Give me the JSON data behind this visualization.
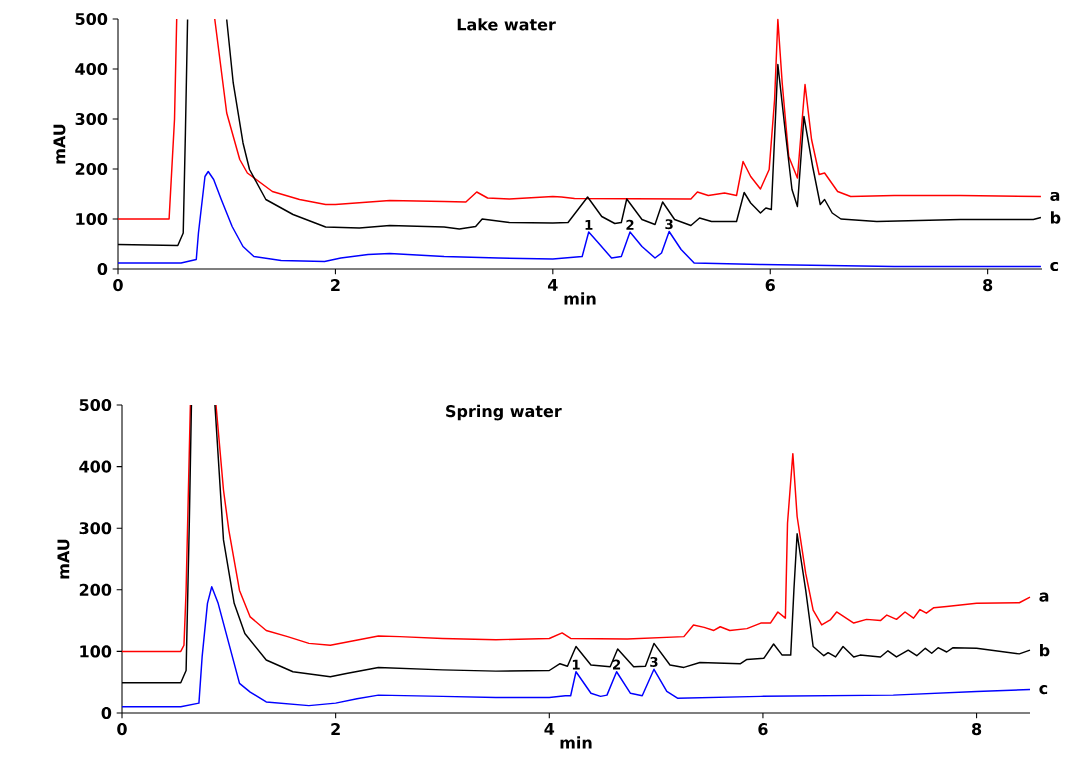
{
  "chart_data": [
    {
      "type": "line",
      "title": "Lake water",
      "xlabel": "min",
      "ylabel": "mAU",
      "xlim": [
        0,
        8.5
      ],
      "ylim": [
        0,
        500
      ],
      "xticks": [
        0,
        2,
        4,
        6,
        8
      ],
      "yticks": [
        0,
        100,
        200,
        300,
        400,
        500
      ],
      "series": [
        {
          "name": "a",
          "color": "#ff0000",
          "x": [
            0,
            0.47,
            0.52,
            0.54,
            0.7,
            0.89,
            1.0,
            1.12,
            1.19,
            1.42,
            1.67,
            1.91,
            2.0,
            2.5,
            3.0,
            3.2,
            3.3,
            3.4,
            3.6,
            4.0,
            4.08,
            4.2,
            5.27,
            5.33,
            5.43,
            5.58,
            5.69,
            5.75,
            5.82,
            5.91,
            5.99,
            6.04,
            6.07,
            6.11,
            6.17,
            6.25,
            6.32,
            6.38,
            6.45,
            6.5,
            6.62,
            6.74,
            7.14,
            7.75,
            8.49
          ],
          "values": [
            100,
            100,
            300,
            500,
            null,
            500,
            312,
            219,
            192,
            155,
            139,
            129,
            129,
            137,
            135,
            134,
            154,
            142,
            140,
            145,
            144,
            141,
            140,
            154,
            147,
            152,
            147,
            215,
            185,
            160,
            199,
            339,
            499,
            372,
            225,
            182,
            369,
            259,
            189,
            192,
            155,
            145,
            147,
            147,
            145
          ]
        },
        {
          "name": "b",
          "color": "#000000",
          "x": [
            0,
            0.55,
            0.6,
            0.62,
            0.64,
            0.8,
            1.0,
            1.06,
            1.15,
            1.21,
            1.36,
            1.61,
            1.91,
            2.22,
            2.5,
            3.0,
            3.14,
            3.29,
            3.35,
            3.6,
            4.0,
            4.14,
            4.32,
            4.45,
            4.57,
            4.63,
            4.68,
            4.82,
            4.94,
            5.01,
            5.12,
            5.27,
            5.35,
            5.46,
            5.69,
            5.76,
            5.82,
            5.91,
            5.96,
            6.01,
            6.07,
            6.14,
            6.2,
            6.25,
            6.31,
            6.39,
            6.46,
            6.5,
            6.57,
            6.65,
            6.98,
            7.75,
            8.42,
            8.49
          ],
          "values": [
            49,
            47,
            72,
            272,
            499,
            null,
            499,
            372,
            252,
            199,
            139,
            109,
            84,
            82,
            87,
            84,
            80,
            85,
            100,
            93,
            92,
            93,
            144,
            105,
            91,
            93,
            140,
            99,
            89,
            134,
            99,
            87,
            102,
            95,
            95,
            153,
            132,
            112,
            122,
            119,
            409,
            272,
            159,
            125,
            305,
            205,
            129,
            139,
            112,
            100,
            95,
            99,
            99,
            103
          ]
        },
        {
          "name": "c",
          "color": "#0000ff",
          "x": [
            0,
            0.58,
            0.72,
            0.74,
            0.8,
            0.83,
            0.88,
            0.95,
            1.05,
            1.15,
            1.25,
            1.5,
            1.9,
            2.05,
            2.3,
            2.5,
            3.0,
            3.5,
            4.0,
            4.27,
            4.33,
            4.42,
            4.54,
            4.63,
            4.71,
            4.82,
            4.94,
            5.0,
            5.07,
            5.18,
            5.3,
            5.91,
            7.14,
            8.49
          ],
          "values": [
            12,
            12,
            19,
            72,
            185,
            195,
            179,
            139,
            85,
            45,
            25,
            17,
            15,
            22,
            29,
            31,
            25,
            22,
            20,
            25,
            74,
            52,
            22,
            25,
            74,
            45,
            22,
            32,
            75,
            39,
            12,
            9,
            5,
            5
          ]
        }
      ],
      "annotations": [
        {
          "text": "1",
          "x": 4.33,
          "y": 74
        },
        {
          "text": "2",
          "x": 4.71,
          "y": 74
        },
        {
          "text": "3",
          "x": 5.07,
          "y": 75
        }
      ]
    },
    {
      "type": "line",
      "title": "Spring water",
      "xlabel": "min",
      "ylabel": "mAU",
      "xlim": [
        0,
        8.5
      ],
      "ylim": [
        0,
        500
      ],
      "xticks": [
        0,
        2,
        4,
        6,
        8
      ],
      "yticks": [
        0,
        100,
        200,
        300,
        400,
        500
      ],
      "series": [
        {
          "name": "a",
          "color": "#ff0000",
          "x": [
            0,
            0.55,
            0.58,
            0.6,
            0.64,
            0.8,
            0.88,
            0.95,
            1.0,
            1.1,
            1.2,
            1.35,
            1.55,
            1.75,
            1.95,
            2.1,
            2.4,
            2.6,
            3.0,
            3.5,
            4.0,
            4.12,
            4.2,
            4.73,
            5.26,
            5.35,
            5.45,
            5.54,
            5.6,
            5.69,
            5.85,
            5.98,
            6.07,
            6.14,
            6.21,
            6.23,
            6.28,
            6.32,
            6.4,
            6.47,
            6.55,
            6.63,
            6.69,
            6.85,
            6.97,
            7.1,
            7.16,
            7.25,
            7.33,
            7.41,
            7.47,
            7.53,
            7.6,
            7.72,
            8.0,
            8.4,
            8.5
          ],
          "values": [
            100,
            100,
            110,
            199,
            500,
            null,
            500,
            362,
            297,
            199,
            156,
            134,
            124,
            113,
            110,
            115,
            125,
            124,
            121,
            119,
            121,
            130,
            121,
            120,
            124,
            143,
            139,
            134,
            140,
            134,
            137,
            146,
            146,
            164,
            154,
            308,
            421,
            319,
            227,
            167,
            143,
            151,
            164,
            146,
            152,
            150,
            159,
            152,
            164,
            154,
            168,
            162,
            171,
            173,
            178,
            179,
            188
          ]
        },
        {
          "name": "b",
          "color": "#000000",
          "x": [
            0,
            0.55,
            0.6,
            0.63,
            0.65,
            0.8,
            0.87,
            0.95,
            1.05,
            1.15,
            1.35,
            1.6,
            1.95,
            2.1,
            2.4,
            3.0,
            3.5,
            4.0,
            4.1,
            4.17,
            4.25,
            4.39,
            4.57,
            4.64,
            4.79,
            4.9,
            4.98,
            5.13,
            5.26,
            5.41,
            5.79,
            5.85,
            6.01,
            6.1,
            6.18,
            6.26,
            6.29,
            6.32,
            6.4,
            6.47,
            6.57,
            6.61,
            6.68,
            6.75,
            6.85,
            6.91,
            7.1,
            7.17,
            7.25,
            7.36,
            7.44,
            7.52,
            7.58,
            7.64,
            7.72,
            7.78,
            8.0,
            8.4,
            8.5
          ],
          "values": [
            49,
            49,
            69,
            308,
            500,
            null,
            500,
            281,
            178,
            129,
            86,
            67,
            59,
            64,
            74,
            70,
            68,
            69,
            80,
            76,
            108,
            78,
            75,
            104,
            75,
            76,
            113,
            78,
            74,
            82,
            80,
            87,
            89,
            112,
            94,
            94,
            200,
            291,
            200,
            108,
            93,
            98,
            91,
            108,
            91,
            94,
            91,
            101,
            91,
            102,
            93,
            105,
            97,
            106,
            99,
            106,
            105,
            96,
            102
          ]
        },
        {
          "name": "c",
          "color": "#0000ff",
          "x": [
            0,
            0.55,
            0.72,
            0.75,
            0.8,
            0.84,
            0.9,
            1.0,
            1.1,
            1.2,
            1.35,
            1.75,
            2.0,
            2.2,
            2.4,
            3.0,
            3.5,
            4.0,
            4.15,
            4.2,
            4.25,
            4.39,
            4.48,
            4.54,
            4.63,
            4.76,
            4.87,
            4.98,
            5.1,
            5.2,
            5.98,
            7.22,
            8.0,
            8.5
          ],
          "values": [
            10,
            10,
            16,
            91,
            178,
            205,
            178,
            113,
            48,
            34,
            18,
            12,
            16,
            23,
            29,
            27,
            25,
            25,
            28,
            28,
            67,
            32,
            27,
            29,
            67,
            32,
            28,
            71,
            35,
            24,
            27,
            29,
            35,
            38
          ]
        }
      ],
      "annotations": [
        {
          "text": "1",
          "x": 4.25,
          "y": 67
        },
        {
          "text": "2",
          "x": 4.63,
          "y": 67
        },
        {
          "text": "3",
          "x": 4.98,
          "y": 71
        }
      ]
    }
  ]
}
